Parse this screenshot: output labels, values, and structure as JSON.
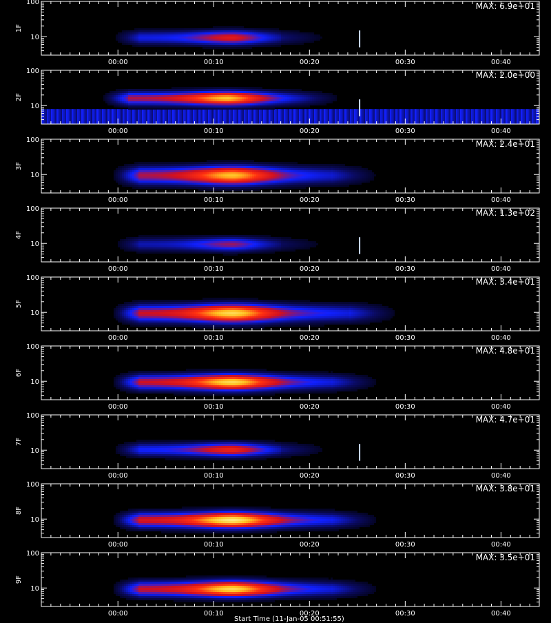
{
  "chart_data": {
    "type": "heatmap",
    "xlabel": "Start Time (11-Jan-05 00:51:55)",
    "xticks": [
      "00:00",
      "00:10",
      "00:20",
      "00:30",
      "00:40"
    ],
    "xtick_minutes": [
      0,
      10,
      20,
      30,
      40
    ],
    "xlim_minutes": [
      -8,
      44
    ],
    "yscale": "log",
    "ylim": [
      3,
      100
    ],
    "yticks": [
      "10",
      "100"
    ],
    "ytick_values": [
      10,
      100
    ],
    "colormap": [
      "#000000",
      "#0a0a60",
      "#1020ff",
      "#d01020",
      "#ff3010",
      "#ffc020",
      "#ffffa0"
    ],
    "panels": [
      {
        "detector": "1F",
        "max_label": "MAX: 6.9e+01",
        "intensity": 0.55,
        "center_y": 10,
        "spread": 0.35,
        "rise_start": 2,
        "peak_time": 12,
        "fade_end": 17,
        "background": 0.0,
        "spike_time": 25.2
      },
      {
        "detector": "2F",
        "max_label": "MAX: 2.0e+00",
        "intensity": 0.85,
        "center_y": 17,
        "spread": 0.35,
        "rise_start": 1,
        "peak_time": 11.5,
        "fade_end": 18,
        "background": 0.35,
        "spike_time": 25.2
      },
      {
        "detector": "3F",
        "max_label": "MAX: 2.4e+01",
        "intensity": 0.85,
        "center_y": 10,
        "spread": 0.45,
        "rise_start": 2,
        "peak_time": 12,
        "fade_end": 22,
        "background": 0.0,
        "spike_time": null
      },
      {
        "detector": "4F",
        "max_label": "MAX: 1.3e+02",
        "intensity": 0.45,
        "center_y": 10,
        "spread": 0.35,
        "rise_start": 2,
        "peak_time": 12,
        "fade_end": 17,
        "background": 0.0,
        "spike_time": 25.2
      },
      {
        "detector": "5F",
        "max_label": "MAX: 3.4e+01",
        "intensity": 0.9,
        "center_y": 10,
        "spread": 0.45,
        "rise_start": 2,
        "peak_time": 12,
        "fade_end": 24,
        "background": 0.0,
        "spike_time": null
      },
      {
        "detector": "6F",
        "max_label": "MAX: 4.8e+01",
        "intensity": 0.9,
        "center_y": 10,
        "spread": 0.4,
        "rise_start": 2,
        "peak_time": 12,
        "fade_end": 22,
        "background": 0.0,
        "spike_time": null
      },
      {
        "detector": "7F",
        "max_label": "MAX: 4.7e+01",
        "intensity": 0.6,
        "center_y": 11,
        "spread": 0.35,
        "rise_start": 2,
        "peak_time": 12,
        "fade_end": 17,
        "background": 0.0,
        "spike_time": 25.2
      },
      {
        "detector": "8F",
        "max_label": "MAX: 3.8e+01",
        "intensity": 0.95,
        "center_y": 10,
        "spread": 0.4,
        "rise_start": 2,
        "peak_time": 12,
        "fade_end": 22,
        "background": 0.0,
        "spike_time": null
      },
      {
        "detector": "9F",
        "max_label": "MAX: 3.5e+01",
        "intensity": 0.9,
        "center_y": 10,
        "spread": 0.4,
        "rise_start": 2,
        "peak_time": 12,
        "fade_end": 22,
        "background": 0.0,
        "spike_time": null
      }
    ]
  }
}
